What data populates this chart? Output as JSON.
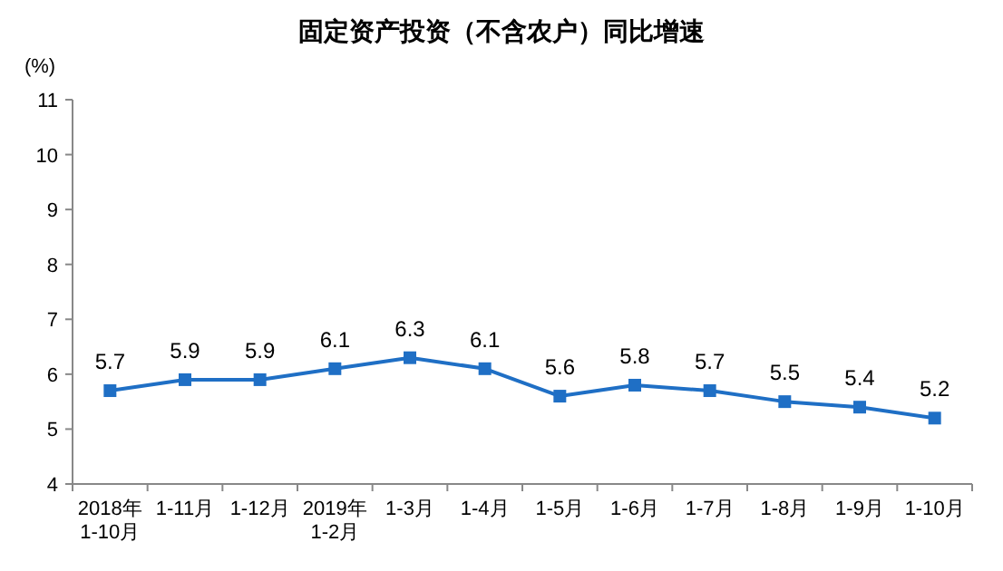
{
  "chart_data": {
    "type": "line",
    "title": "固定资产投资（不含农户）同比增速",
    "ylabel": "(%)",
    "categories": [
      "2018年\n1-10月",
      "1-11月",
      "1-12月",
      "2019年\n1-2月",
      "1-3月",
      "1-4月",
      "1-5月",
      "1-6月",
      "1-7月",
      "1-8月",
      "1-9月",
      "1-10月"
    ],
    "series": [
      {
        "color": "#1f6fc5",
        "values": [
          5.7,
          5.9,
          5.9,
          6.1,
          6.3,
          6.1,
          5.6,
          5.8,
          5.7,
          5.5,
          5.4,
          5.2
        ]
      }
    ],
    "ylim": [
      4,
      11
    ],
    "yticks": [
      4,
      5,
      6,
      7,
      8,
      9,
      10,
      11
    ],
    "marker": "square",
    "data_labels": true
  }
}
